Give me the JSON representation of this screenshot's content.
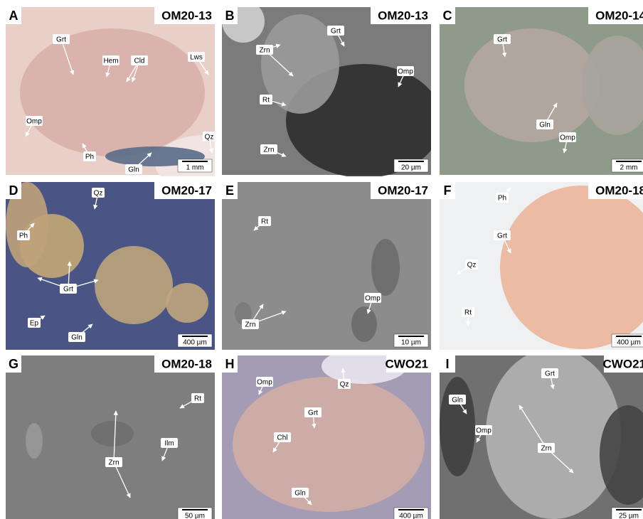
{
  "panels": [
    {
      "letter": "A",
      "sample": "OM20-13",
      "scale": "1 mm",
      "labels": [
        "Grt",
        "Hem",
        "Cld",
        "Lws",
        "Omp",
        "Ph",
        "Gln",
        "Qz"
      ]
    },
    {
      "letter": "B",
      "sample": "OM20-13",
      "scale": "20 µm",
      "labels": [
        "Zrn",
        "Rt",
        "Zrn",
        "Grt",
        "Omp"
      ]
    },
    {
      "letter": "C",
      "sample": "OM20-14",
      "scale": "2 mm",
      "labels": [
        "Grt",
        "Gln",
        "Omp"
      ]
    },
    {
      "letter": "D",
      "sample": "OM20-17",
      "scale": "400 µm",
      "labels": [
        "Qz",
        "Ph",
        "Grt",
        "Ep",
        "Gln"
      ]
    },
    {
      "letter": "E",
      "sample": "OM20-17",
      "scale": "10 µm",
      "labels": [
        "Rt",
        "Zrn",
        "Omp"
      ]
    },
    {
      "letter": "F",
      "sample": "OM20-18",
      "scale": "400 µm",
      "labels": [
        "Ph",
        "Grt",
        "Qz",
        "Rt"
      ]
    },
    {
      "letter": "G",
      "sample": "OM20-18",
      "scale": "50 µm",
      "labels": [
        "Rt",
        "Ilm",
        "Zrn"
      ]
    },
    {
      "letter": "H",
      "sample": "CWO21",
      "scale": "400 µm",
      "labels": [
        "Omp",
        "Qz",
        "Grt",
        "Chl",
        "Gln"
      ]
    },
    {
      "letter": "I",
      "sample": "CWO21",
      "scale": "25 µm",
      "labels": [
        "Gln",
        "Omp",
        "Grt",
        "Zrn"
      ]
    }
  ]
}
